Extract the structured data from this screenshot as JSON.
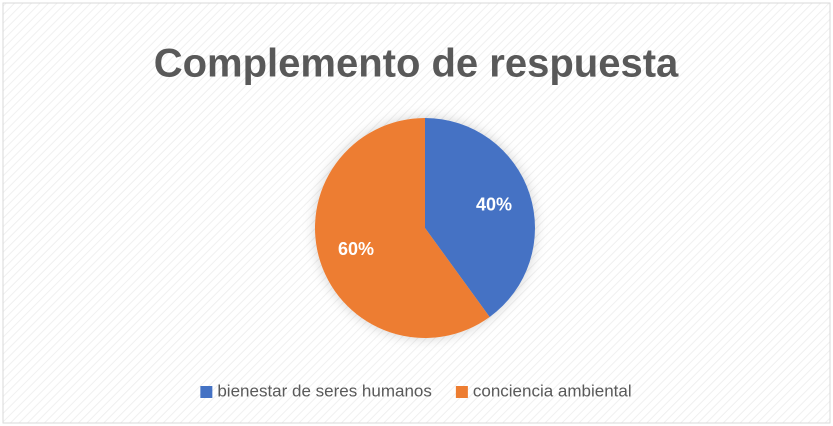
{
  "chart_data": {
    "type": "pie",
    "title": "Complemento de respuesta",
    "categories": [
      "bienestar de seres humanos",
      "conciencia ambiental"
    ],
    "values": [
      40,
      60
    ],
    "value_labels": [
      "40%",
      "60%"
    ],
    "colors": [
      "#4472c4",
      "#ed7d31"
    ],
    "legend": "bottom"
  }
}
